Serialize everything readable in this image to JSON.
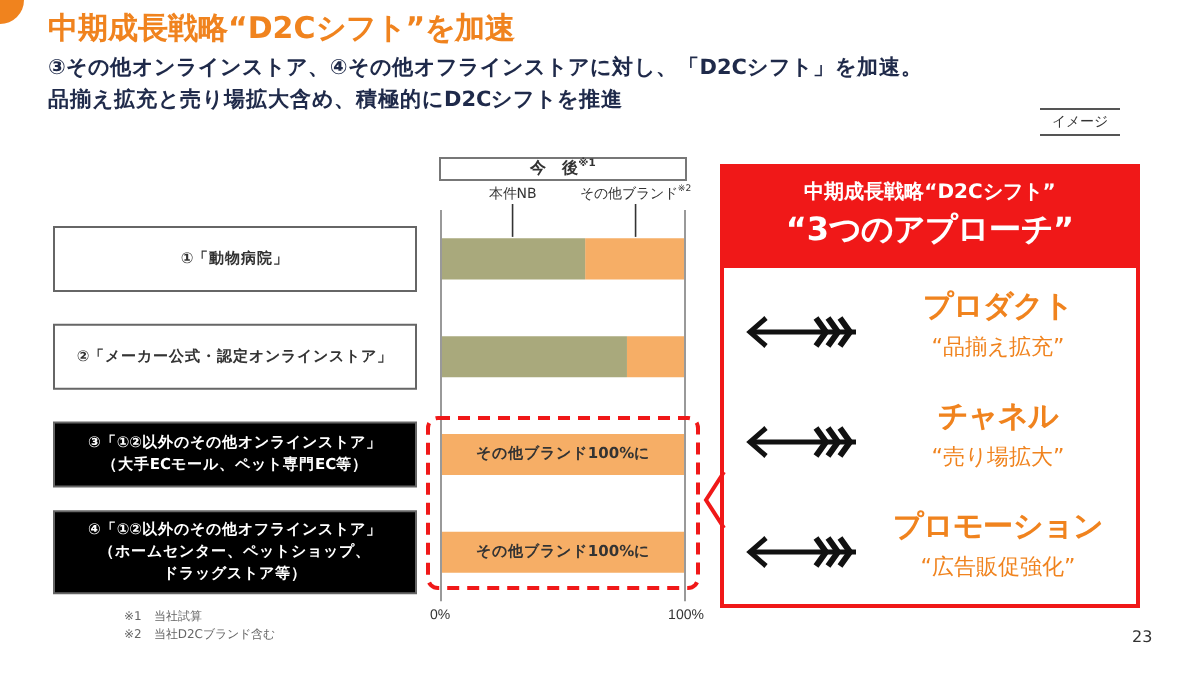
{
  "chart_data": {
    "type": "bar",
    "orientation": "horizontal",
    "stacked": true,
    "title": "中期成長戦略“D2Cシフト”を加速",
    "subtitle": "③その他オンラインストア、④その他オフラインストアに対し、「D2Cシフト」を加速。品揃え拡充と売り場拡大含め、積極的にD2Cシフトを推進",
    "categories": [
      "①「動物病院」",
      "②「メーカー公式・認定オンラインストア」",
      "③「①②以外のその他オンラインストア」（大手ECモール、ペット専門EC等）",
      "④「①②以外のその他オフラインストア」（ホームセンター、ペットショップ、ドラッグストア等）"
    ],
    "series": [
      {
        "name": "本件NB",
        "color": "#a9a97c",
        "values": [
          59,
          76,
          0,
          0
        ]
      },
      {
        "name": "その他ブランド$^{※2}$",
        "color": "#f6ae66",
        "values": [
          41,
          24,
          100,
          100
        ]
      }
    ],
    "xlim": [
      0,
      100
    ],
    "xticks": [
      {
        "value": 0,
        "label": "0%"
      },
      {
        "value": 100,
        "label": "100%"
      }
    ],
    "legend": false,
    "annotations": [
      "今　後$^{※1}$",
      "イメージ",
      "中期成長戦略“D2Cシフト”",
      "“3つのアプローチ”",
      "プロダクト",
      "“品揃え拡充”",
      "チャネル",
      "“売り場拡大”",
      "プロモーション",
      "“広告販促強化”",
      "※1　当社試算",
      "※2　当社D2Cブランド含む",
      "23",
      "その他ブランド100%に",
      "その他ブランド100%に"
    ]
  }
}
